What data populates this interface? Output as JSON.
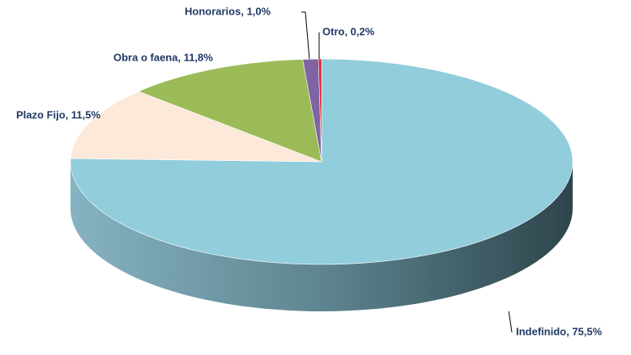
{
  "chart_data": {
    "type": "pie3d",
    "values": [
      75.5,
      11.5,
      11.8,
      1.0,
      0.2
    ],
    "value_labels": [
      "Indefinido, 75,5%",
      "Plazo Fijo, 11,5%",
      "Obra o faena, 11,8%",
      "Honorarios, 1,0%",
      "Otro, 0,2%"
    ],
    "colors": [
      "#92cddc",
      "#fde9d9",
      "#9bbb59",
      "#8064a2",
      "#e3202a"
    ]
  }
}
